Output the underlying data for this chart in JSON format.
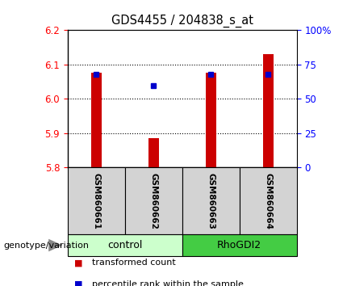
{
  "title": "GDS4455 / 204838_s_at",
  "samples": [
    "GSM860661",
    "GSM860662",
    "GSM860663",
    "GSM860664"
  ],
  "groups": [
    "control",
    "control",
    "RhoGDI2",
    "RhoGDI2"
  ],
  "red_values": [
    6.075,
    5.885,
    6.075,
    6.13
  ],
  "blue_values": [
    6.072,
    6.037,
    6.072,
    6.072
  ],
  "ylim": [
    5.8,
    6.2
  ],
  "yticks_left": [
    5.8,
    5.9,
    6.0,
    6.1,
    6.2
  ],
  "yticks_right": [
    0,
    25,
    50,
    75,
    100
  ],
  "right_tick_labels": [
    "0",
    "25",
    "50",
    "75",
    "100%"
  ],
  "bar_bottom": 5.8,
  "bar_width": 0.18,
  "red_color": "#cc0000",
  "blue_color": "#0000cc",
  "group_colors": {
    "control": "#ccffcc",
    "RhoGDI2": "#44cc44"
  },
  "group_label": "genotype/variation",
  "legend_items": [
    "transformed count",
    "percentile rank within the sample"
  ],
  "legend_colors": [
    "#cc0000",
    "#0000cc"
  ],
  "bg_color": "#ffffff",
  "plot_bg": "#ffffff"
}
